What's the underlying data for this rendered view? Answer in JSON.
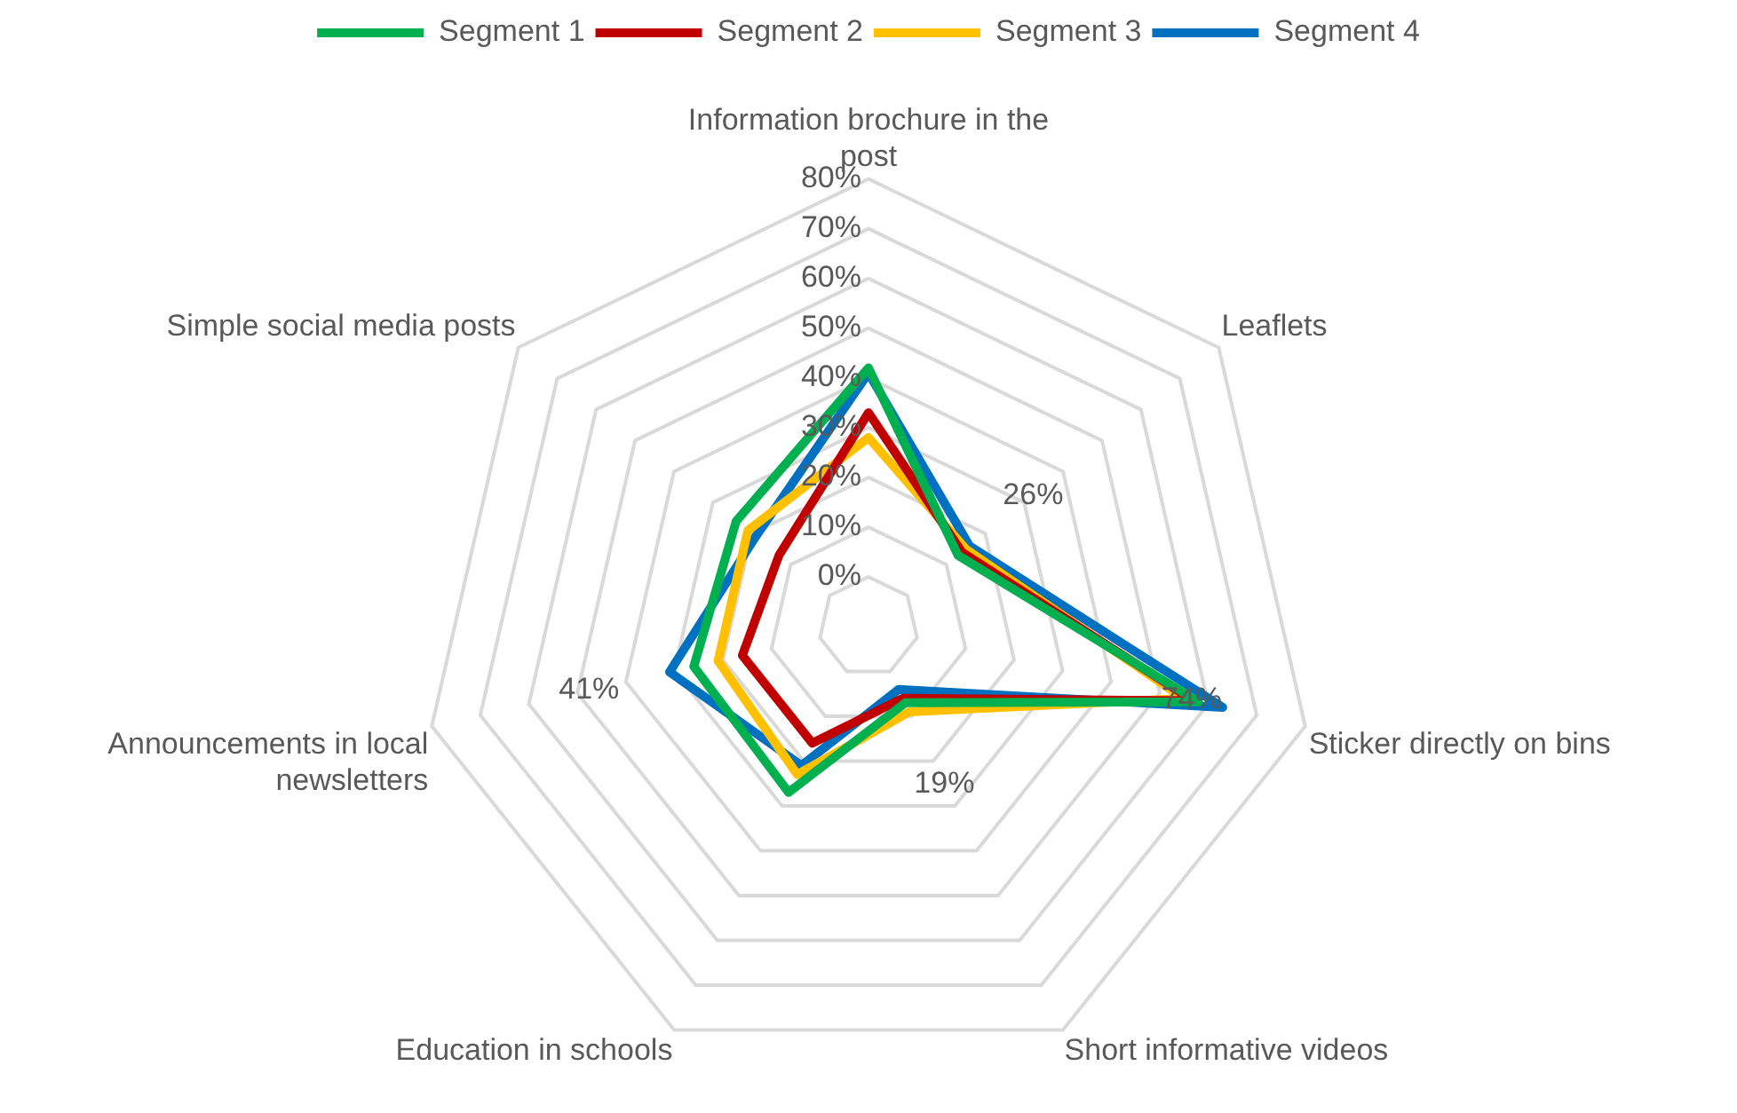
{
  "chart_data": {
    "type": "radar",
    "categories": [
      "Information brochure in the post",
      "Leaflets",
      "Sticker directly on bins",
      "Short informative videos",
      "Education in schools",
      "Announcements in local newsletters",
      "Simple social media posts"
    ],
    "series": [
      {
        "name": "Segment 1",
        "color": "#00b050",
        "values": [
          42,
          13,
          58,
          7,
          27,
          26,
          24
        ]
      },
      {
        "name": "Segment 2",
        "color": "#c00000",
        "values": [
          33,
          14,
          57,
          6,
          16,
          16,
          13
        ]
      },
      {
        "name": "Segment 3",
        "color": "#ffc000",
        "values": [
          28,
          15,
          55,
          9,
          23,
          21,
          21
        ]
      },
      {
        "name": "Segment 4",
        "color": "#0070c0",
        "values": [
          41,
          16,
          63,
          4,
          21,
          31,
          19
        ]
      }
    ],
    "ylim": [
      -10,
      80
    ],
    "yticks": [
      {
        "value": 0,
        "label": "0%"
      },
      {
        "value": 10,
        "label": "10%"
      },
      {
        "value": 20,
        "label": "20%"
      },
      {
        "value": 30,
        "label": "30%"
      },
      {
        "value": 40,
        "label": "40%"
      },
      {
        "value": 50,
        "label": "50%"
      },
      {
        "value": 60,
        "label": "60%"
      },
      {
        "value": 70,
        "label": "70%"
      },
      {
        "value": 80,
        "label": "80%"
      }
    ],
    "annotations": [
      {
        "text": "26%",
        "x": "Leaflets"
      },
      {
        "text": "74%",
        "x": "Sticker directly on bins"
      },
      {
        "text": "19%",
        "x": "Short informative videos"
      },
      {
        "text": "41%",
        "x": "Announcements in local newsletters"
      }
    ],
    "grid": true,
    "legend": "top",
    "marker": "none",
    "line_style": "solid"
  }
}
